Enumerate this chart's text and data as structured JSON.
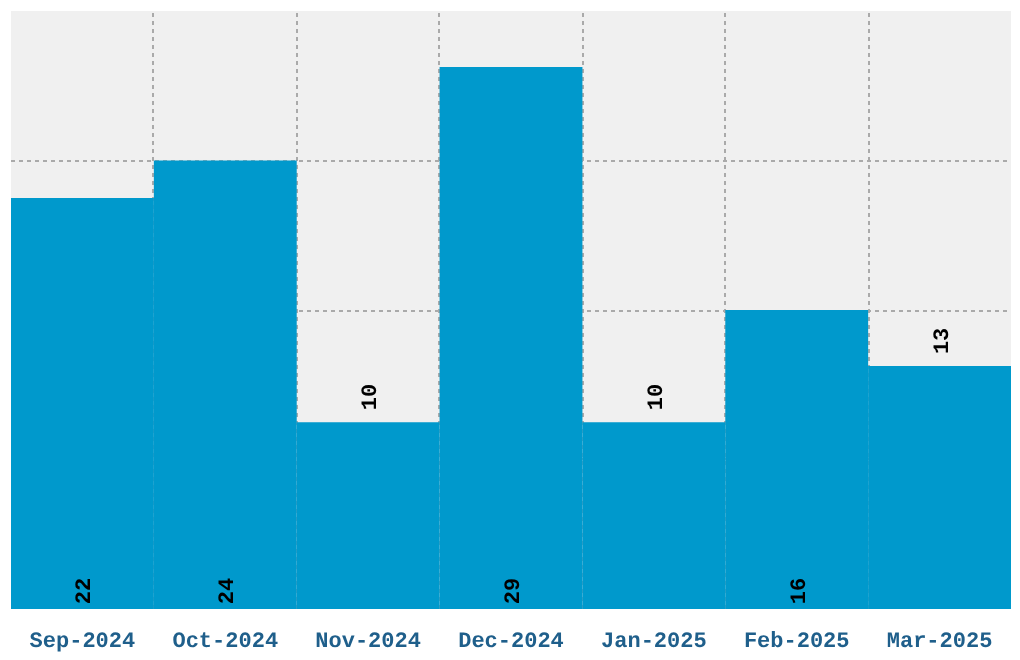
{
  "chart_data": {
    "type": "bar",
    "categories": [
      "Sep-2024",
      "Oct-2024",
      "Nov-2024",
      "Dec-2024",
      "Jan-2025",
      "Feb-2025",
      "Mar-2025"
    ],
    "values": [
      22,
      24,
      10,
      29,
      10,
      16,
      13
    ],
    "color": "#0099cc",
    "ylim": [
      0,
      32
    ],
    "tick_labels": "x",
    "grid": true,
    "data_labels": true
  }
}
